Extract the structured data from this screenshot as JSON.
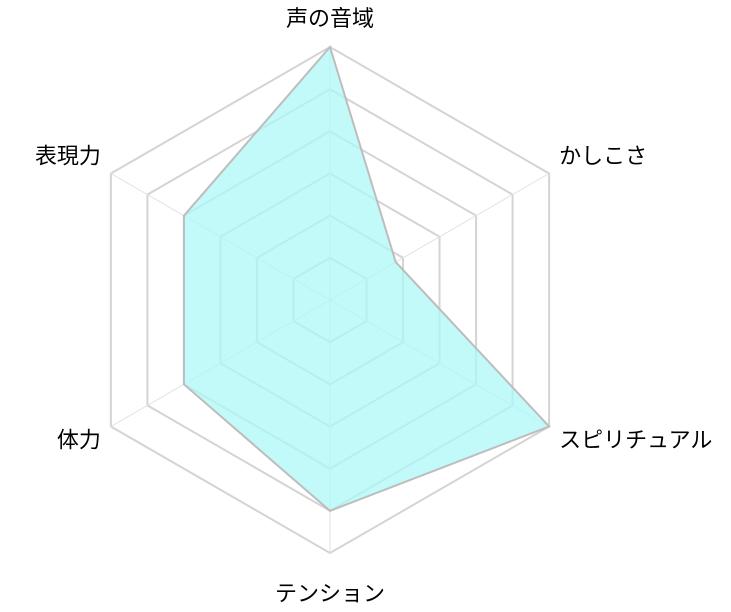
{
  "chart_data": {
    "type": "radar",
    "categories": [
      "声の音域",
      "かしこさ",
      "スピリチュアル",
      "テンション",
      "体力",
      "表現力"
    ],
    "values": [
      6,
      1.8,
      6,
      5,
      4,
      4
    ],
    "color": "#aef7f7",
    "ylim": [
      0,
      6
    ],
    "yticks": [
      1,
      2,
      3,
      4,
      5,
      6
    ],
    "grid": true
  }
}
